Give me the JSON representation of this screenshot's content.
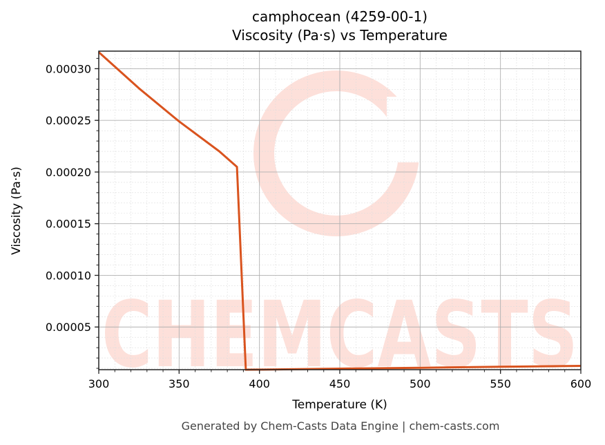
{
  "chart_data": {
    "type": "line",
    "title": "camphocean (4259-00-1)",
    "subtitle": "Viscosity (Pa·s) vs Temperature",
    "xlabel": "Temperature (K)",
    "ylabel": "Viscosity (Pa·s)",
    "xlim": [
      300,
      600
    ],
    "ylim": [
      8.7e-06,
      0.000317
    ],
    "xticks": [
      300,
      350,
      400,
      450,
      500,
      550,
      600
    ],
    "xtick_labels": [
      "300",
      "350",
      "400",
      "450",
      "500",
      "550",
      "600"
    ],
    "yticks": [
      5e-05,
      0.0001,
      0.00015,
      0.0002,
      0.00025,
      0.0003
    ],
    "ytick_labels": [
      "0.00005",
      "0.00010",
      "0.00015",
      "0.00020",
      "0.00025",
      "0.00030"
    ],
    "grid": true,
    "minor_grid": true,
    "legend": null,
    "series": [
      {
        "name": "Viscosity",
        "color": "#d9531e",
        "x": [
          300,
          325,
          350,
          375,
          386,
          391.5,
          400,
          450,
          500,
          550,
          600
        ],
        "y": [
          0.000316,
          0.000281,
          0.000249,
          0.00022,
          0.000205,
          8.7e-06,
          8.8e-06,
          9.7e-06,
          1.06e-05,
          1.15e-05,
          1.24e-05
        ]
      }
    ]
  },
  "watermark": {
    "text": "CHEMCASTS",
    "color": "#fde0da"
  },
  "footer": "Generated by Chem-Casts Data Engine | chem-casts.com"
}
